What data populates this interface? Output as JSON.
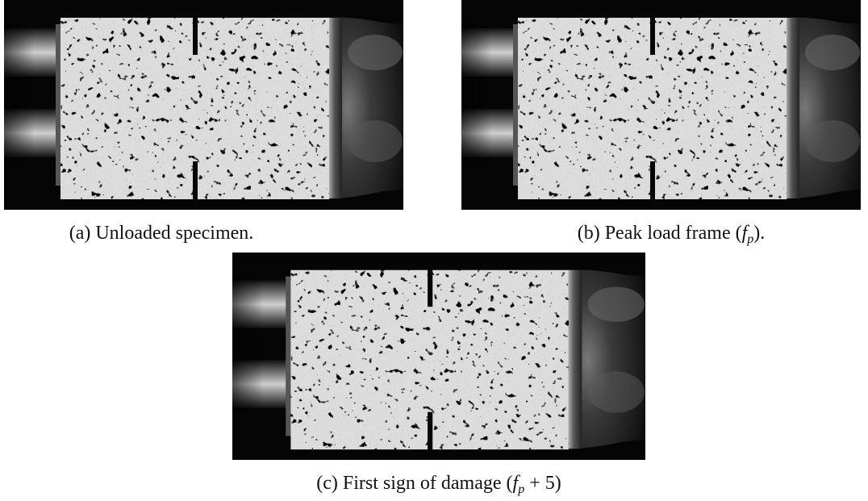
{
  "figures": [
    {
      "caption": {
        "prefix": "(a) Unloaded specimen."
      }
    },
    {
      "caption": {
        "prefix": "(b) Peak load frame (",
        "math": "f",
        "sub": "p",
        "suffix": ")."
      }
    },
    {
      "caption": {
        "prefix": "(c) First sign of damage (",
        "math": "f",
        "sub": "p",
        "suffix": " + 5)"
      }
    }
  ]
}
